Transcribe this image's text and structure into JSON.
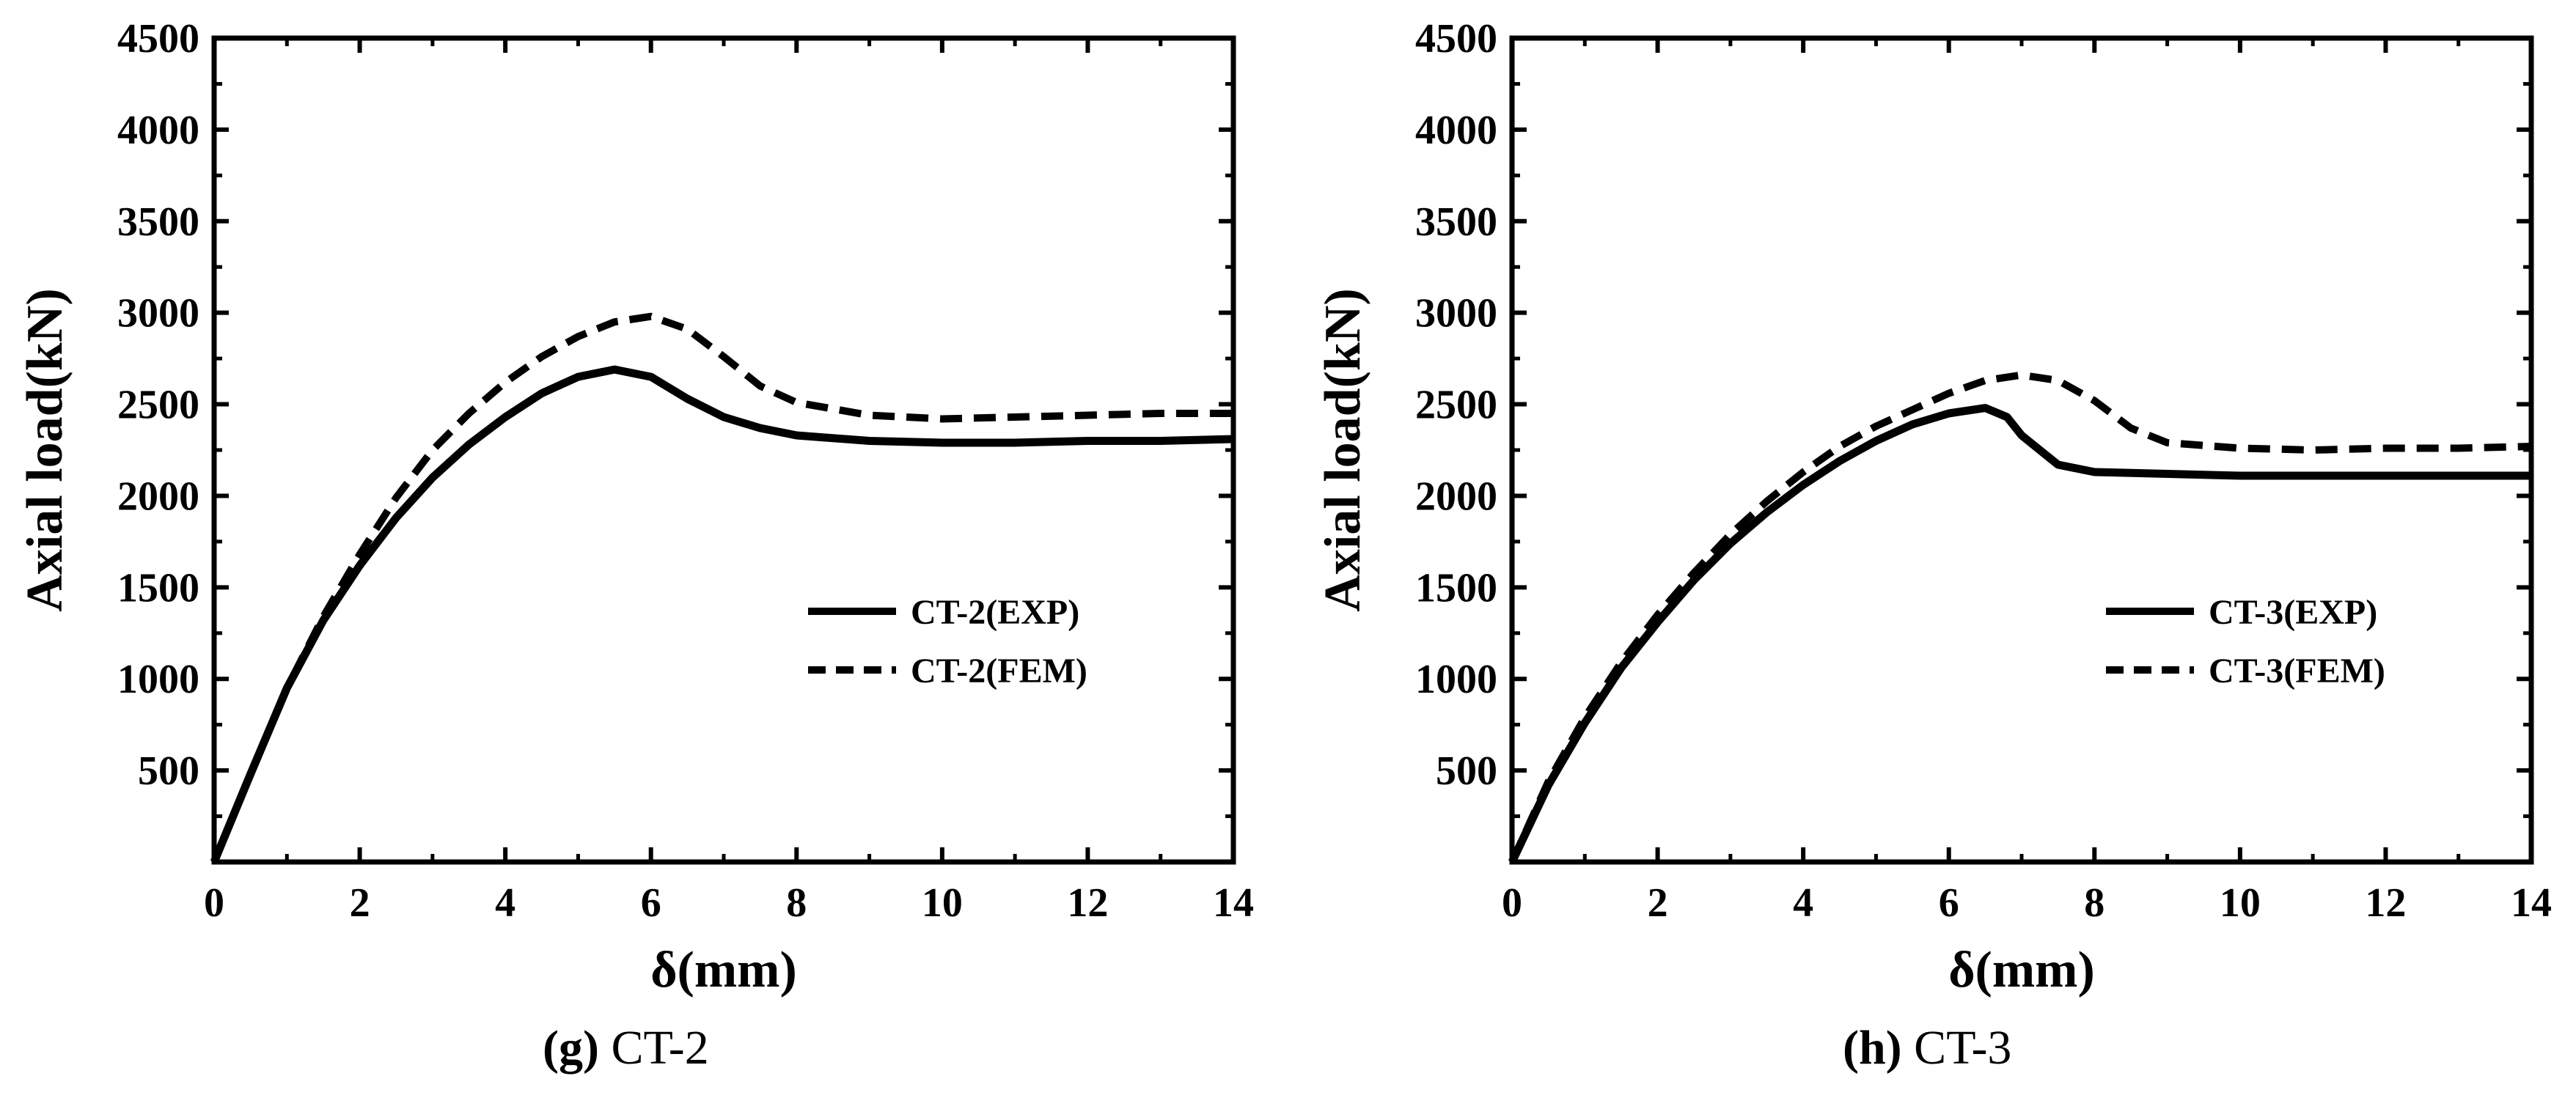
{
  "chart_data": [
    {
      "type": "line",
      "title": "",
      "caption_letter": "(g)",
      "caption_text": "CT-2",
      "xlabel": "δ(mm)",
      "ylabel": "Axial load(kN)",
      "xlim": [
        0,
        14
      ],
      "ylim": [
        0,
        4500
      ],
      "xticks": [
        "0",
        "2",
        "4",
        "6",
        "8",
        "10",
        "12",
        "14"
      ],
      "yticks": [
        "500",
        "1000",
        "1500",
        "2000",
        "2500",
        "3000",
        "3500",
        "4000",
        "4500"
      ],
      "legend_position": "center-right",
      "series": [
        {
          "name": "CT-2(EXP)",
          "style": "solid",
          "points": [
            [
              0,
              0
            ],
            [
              0.5,
              480
            ],
            [
              1,
              950
            ],
            [
              1.5,
              1320
            ],
            [
              2,
              1620
            ],
            [
              2.5,
              1880
            ],
            [
              3,
              2100
            ],
            [
              3.5,
              2280
            ],
            [
              4,
              2430
            ],
            [
              4.5,
              2560
            ],
            [
              5,
              2650
            ],
            [
              5.5,
              2690
            ],
            [
              6,
              2650
            ],
            [
              6.5,
              2530
            ],
            [
              7,
              2430
            ],
            [
              7.5,
              2370
            ],
            [
              8,
              2330
            ],
            [
              9,
              2300
            ],
            [
              10,
              2290
            ],
            [
              11,
              2290
            ],
            [
              12,
              2300
            ],
            [
              13,
              2300
            ],
            [
              14,
              2310
            ]
          ]
        },
        {
          "name": "CT-2(FEM)",
          "style": "dashed",
          "points": [
            [
              0,
              0
            ],
            [
              0.5,
              480
            ],
            [
              1,
              950
            ],
            [
              1.5,
              1340
            ],
            [
              2,
              1680
            ],
            [
              2.5,
              1990
            ],
            [
              3,
              2250
            ],
            [
              3.5,
              2450
            ],
            [
              4,
              2620
            ],
            [
              4.5,
              2760
            ],
            [
              5,
              2870
            ],
            [
              5.5,
              2950
            ],
            [
              6,
              2980
            ],
            [
              6.5,
              2910
            ],
            [
              7,
              2760
            ],
            [
              7.5,
              2600
            ],
            [
              8,
              2510
            ],
            [
              9,
              2440
            ],
            [
              10,
              2420
            ],
            [
              11,
              2430
            ],
            [
              12,
              2440
            ],
            [
              13,
              2450
            ],
            [
              14,
              2450
            ]
          ]
        }
      ]
    },
    {
      "type": "line",
      "title": "",
      "caption_letter": "(h)",
      "caption_text": "CT-3",
      "xlabel": "δ(mm)",
      "ylabel": "Axial load(kN)",
      "xlim": [
        0,
        14
      ],
      "ylim": [
        0,
        4500
      ],
      "xticks": [
        "0",
        "2",
        "4",
        "6",
        "8",
        "10",
        "12",
        "14"
      ],
      "yticks": [
        "500",
        "1000",
        "1500",
        "2000",
        "2500",
        "3000",
        "3500",
        "4000",
        "4500"
      ],
      "legend_position": "center-right",
      "series": [
        {
          "name": "CT-3(EXP)",
          "style": "solid",
          "points": [
            [
              0,
              0
            ],
            [
              0.5,
              420
            ],
            [
              1,
              760
            ],
            [
              1.5,
              1060
            ],
            [
              2,
              1310
            ],
            [
              2.5,
              1540
            ],
            [
              3,
              1740
            ],
            [
              3.5,
              1910
            ],
            [
              4,
              2060
            ],
            [
              4.5,
              2190
            ],
            [
              5,
              2300
            ],
            [
              5.5,
              2390
            ],
            [
              6,
              2450
            ],
            [
              6.5,
              2480
            ],
            [
              6.8,
              2430
            ],
            [
              7,
              2330
            ],
            [
              7.5,
              2170
            ],
            [
              8,
              2130
            ],
            [
              9,
              2120
            ],
            [
              10,
              2110
            ],
            [
              11,
              2110
            ],
            [
              12,
              2110
            ],
            [
              13,
              2110
            ],
            [
              14,
              2110
            ]
          ]
        },
        {
          "name": "CT-3(FEM)",
          "style": "dashed",
          "points": [
            [
              0,
              0
            ],
            [
              0.5,
              440
            ],
            [
              1,
              790
            ],
            [
              1.5,
              1090
            ],
            [
              2,
              1350
            ],
            [
              2.5,
              1580
            ],
            [
              3,
              1790
            ],
            [
              3.5,
              1970
            ],
            [
              4,
              2130
            ],
            [
              4.5,
              2270
            ],
            [
              5,
              2380
            ],
            [
              5.5,
              2470
            ],
            [
              6,
              2560
            ],
            [
              6.5,
              2630
            ],
            [
              7,
              2660
            ],
            [
              7.5,
              2630
            ],
            [
              8,
              2520
            ],
            [
              8.5,
              2370
            ],
            [
              9,
              2290
            ],
            [
              10,
              2260
            ],
            [
              11,
              2250
            ],
            [
              12,
              2260
            ],
            [
              13,
              2260
            ],
            [
              14,
              2270
            ]
          ]
        }
      ]
    }
  ]
}
